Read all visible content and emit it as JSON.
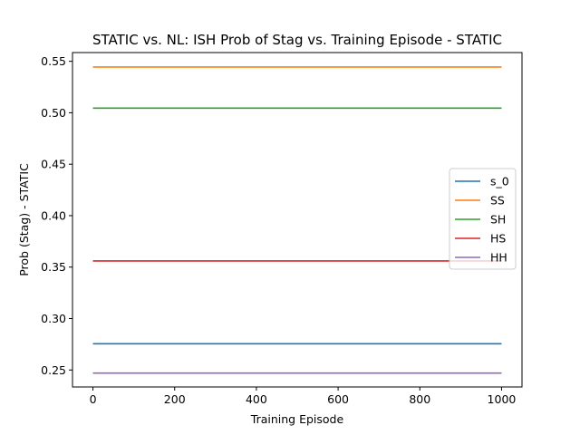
{
  "chart_data": {
    "type": "line",
    "title": "STATIC vs. NL: ISH Prob of Stag vs. Training Episode - STATIC",
    "xlabel": "Training Episode",
    "ylabel": "Prob (Stag) - STATIC",
    "xlim": [
      -50,
      1050
    ],
    "ylim": [
      0.2335,
      0.5585
    ],
    "xticks": [
      0,
      200,
      400,
      600,
      800,
      1000
    ],
    "yticks": [
      0.25,
      0.3,
      0.35,
      0.4,
      0.45,
      0.5,
      0.55
    ],
    "xtick_labels": [
      "0",
      "200",
      "400",
      "600",
      "800",
      "1000"
    ],
    "ytick_labels": [
      "0.25",
      "0.30",
      "0.35",
      "0.40",
      "0.45",
      "0.50",
      "0.55"
    ],
    "grid": false,
    "legend_position": "center-right",
    "x": [
      0,
      1000
    ],
    "series": [
      {
        "name": "s_0",
        "color": "#1f77b4",
        "values": [
          0.2755,
          0.2755
        ]
      },
      {
        "name": "SS",
        "color": "#ff7f0e",
        "values": [
          0.5445,
          0.5445
        ]
      },
      {
        "name": "SH",
        "color": "#2ca02c",
        "values": [
          0.5045,
          0.5045
        ]
      },
      {
        "name": "HS",
        "color": "#d62728",
        "values": [
          0.356,
          0.356
        ]
      },
      {
        "name": "HH",
        "color": "#9467bd",
        "values": [
          0.247,
          0.247
        ]
      }
    ]
  }
}
